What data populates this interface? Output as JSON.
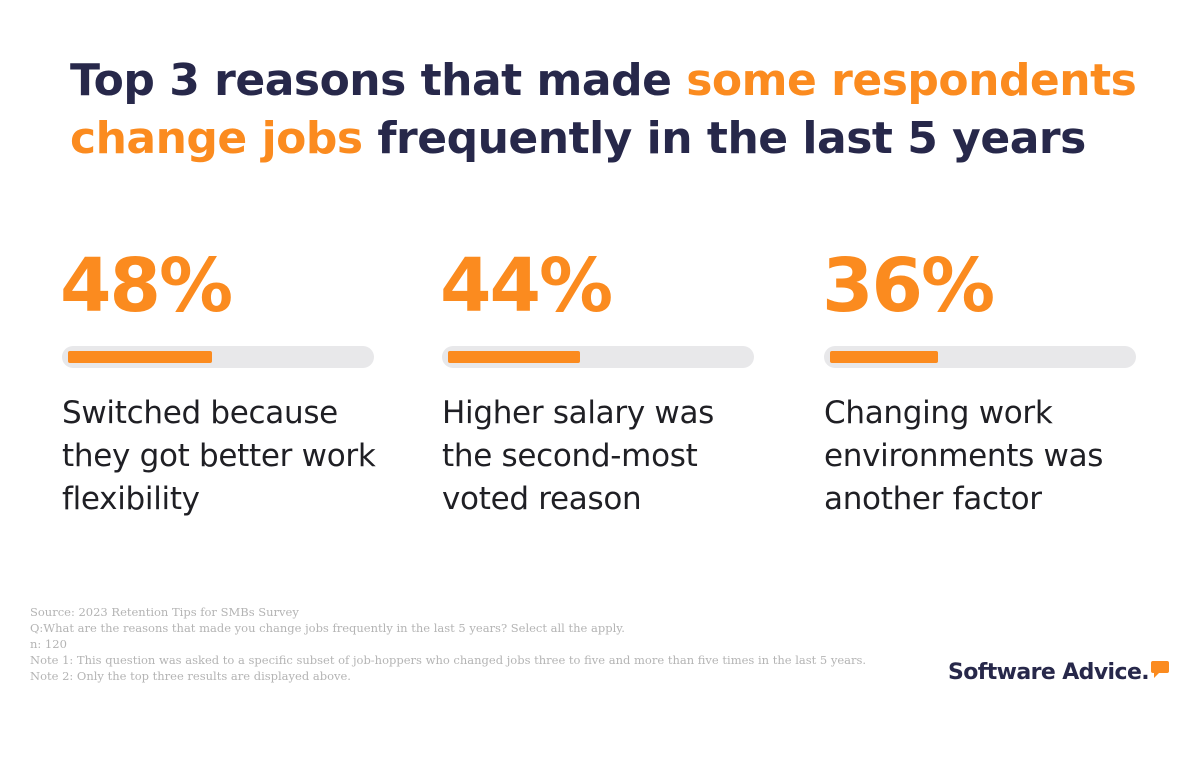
{
  "title": {
    "part1": "Top 3 reasons that made ",
    "accent1": "some respondents change jobs",
    "part2": " frequently in the last 5 years"
  },
  "chart_data": {
    "type": "bar",
    "title": "Top 3 reasons that made some respondents change jobs frequently in the last 5 years",
    "categories": [
      "Switched because they got better work flexibility",
      "Higher salary was the second-most voted reason",
      "Changing work environments was another factor"
    ],
    "values": [
      48,
      44,
      36
    ],
    "labels": [
      "48%",
      "44%",
      "36%"
    ],
    "ylim": [
      0,
      100
    ],
    "unit": "%"
  },
  "notes": {
    "source": "Source: 2023 Retention Tips for SMBs Survey",
    "question": "Q:What are the reasons that made you change jobs frequently in the last 5 years? Select all the apply.",
    "n": "n: 120",
    "note1": "Note 1: This question was asked to a specific subset of job-hoppers who changed jobs three to five and more than five times in the last 5 years.",
    "note2": "Note 2: Only the top three results are displayed above."
  },
  "brand": {
    "name": "Software Advice.",
    "icon": "speech-bubble-icon"
  },
  "colors": {
    "accent": "#fb8b1f",
    "navy": "#27284a",
    "track": "#e8e8ea"
  }
}
